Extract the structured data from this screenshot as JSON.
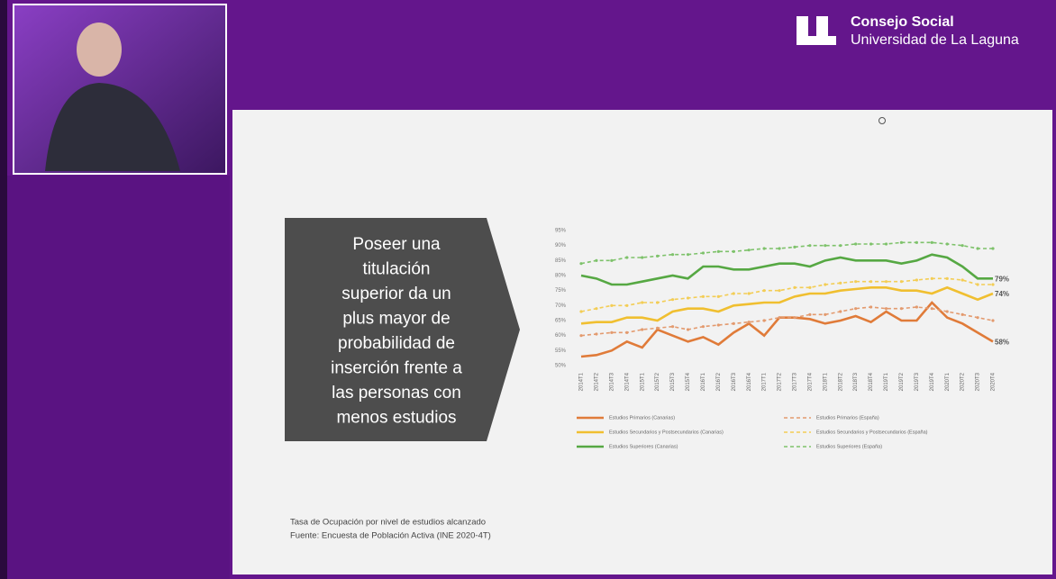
{
  "header": {
    "org": "Consejo Social",
    "university": "Universidad de La Laguna"
  },
  "slide": {
    "callout": [
      "Poseer una",
      "titulación",
      "superior da un",
      "plus mayor de",
      "probabilidad de",
      "inserción frente a",
      "las personas con",
      "menos estudios"
    ],
    "caption": [
      "Tasa de Ocupación por nivel de estudios alcanzado",
      "Fuente: Encuesta de Población Activa (INE 2020-4T)"
    ]
  },
  "chart_data": {
    "type": "line",
    "categories": [
      "2014T1",
      "2014T2",
      "2014T3",
      "2014T4",
      "2015T1",
      "2015T2",
      "2015T3",
      "2015T4",
      "2016T1",
      "2016T2",
      "2016T3",
      "2016T4",
      "2017T1",
      "2017T2",
      "2017T3",
      "2017T4",
      "2018T1",
      "2018T2",
      "2018T3",
      "2018T4",
      "2019T1",
      "2019T2",
      "2019T3",
      "2019T4",
      "2020T1",
      "2020T2",
      "2020T3",
      "2020T4"
    ],
    "ylim": [
      50,
      95
    ],
    "yticks": [
      {
        "value": 50,
        "label": "50%"
      },
      {
        "value": 55,
        "label": "55%"
      },
      {
        "value": 60,
        "label": "60%"
      },
      {
        "value": 65,
        "label": "65%"
      },
      {
        "value": 70,
        "label": "70%"
      },
      {
        "value": 75,
        "label": "75%"
      },
      {
        "value": 80,
        "label": "80%"
      },
      {
        "value": 85,
        "label": "85%"
      },
      {
        "value": 90,
        "label": "90%"
      },
      {
        "value": 95,
        "label": "95%"
      }
    ],
    "grid": false,
    "series": [
      {
        "name": "Estudios Primarios (Canarias)",
        "color": "#e07b39",
        "dashed": false,
        "values": [
          53,
          53.5,
          55,
          58,
          56,
          62,
          60,
          58,
          59.5,
          57,
          61,
          64,
          60,
          66,
          66,
          65.5,
          64,
          65,
          66.5,
          64.5,
          68,
          65,
          65,
          71,
          66,
          64,
          61,
          58
        ],
        "value_labels": [
          null,
          null,
          null,
          null,
          null,
          null,
          null,
          null,
          null,
          null,
          null,
          null,
          null,
          null,
          null,
          null,
          null,
          null,
          null,
          null,
          null,
          null,
          null,
          null,
          null,
          null,
          null,
          "58%"
        ]
      },
      {
        "name": "Estudios Primarios (España)",
        "color": "#e39a6e",
        "dashed": true,
        "values": [
          60,
          60.5,
          61,
          61,
          62,
          62.5,
          63,
          62,
          63,
          63.5,
          64,
          64.5,
          65,
          66,
          66,
          67,
          67,
          68,
          69,
          69.5,
          69,
          69,
          69.5,
          69,
          68,
          67,
          66,
          65
        ]
      },
      {
        "name": "Estudios Secundarios y Postsecundarios (Canarias)",
        "color": "#f0bf30",
        "dashed": false,
        "values": [
          64,
          64.5,
          64.5,
          66,
          66,
          65,
          68,
          69,
          69,
          68,
          70,
          70.5,
          71,
          71,
          73,
          74,
          74,
          75,
          75.5,
          76,
          76,
          75,
          75,
          74,
          76,
          74,
          72,
          74
        ],
        "value_labels": [
          null,
          null,
          null,
          null,
          null,
          null,
          null,
          null,
          null,
          null,
          null,
          null,
          null,
          null,
          null,
          null,
          null,
          null,
          null,
          null,
          null,
          null,
          null,
          null,
          null,
          null,
          null,
          "74%"
        ]
      },
      {
        "name": "Estudios Secundarios y Postsecundarios (España)",
        "color": "#f3cd55",
        "dashed": true,
        "values": [
          68,
          69,
          70,
          70,
          71,
          71,
          72,
          72.5,
          73,
          73,
          74,
          74,
          75,
          75,
          76,
          76,
          77,
          77.5,
          78,
          78,
          78,
          78,
          78.5,
          79,
          79,
          78.5,
          77,
          77
        ]
      },
      {
        "name": "Estudios Superiores (Canarias)",
        "color": "#56a843",
        "dashed": false,
        "values": [
          80,
          79,
          77,
          77,
          78,
          79,
          80,
          79,
          83,
          83,
          82,
          82,
          83,
          84,
          84,
          83,
          85,
          86,
          85,
          85,
          85,
          84,
          85,
          87,
          86,
          83,
          79,
          79
        ],
        "value_labels": [
          null,
          null,
          null,
          null,
          null,
          null,
          null,
          null,
          null,
          null,
          null,
          null,
          null,
          null,
          null,
          null,
          null,
          null,
          null,
          null,
          null,
          null,
          null,
          null,
          null,
          null,
          null,
          "79%"
        ]
      },
      {
        "name": "Estudios Superiores (España)",
        "color": "#7ec26b",
        "dashed": true,
        "values": [
          84,
          85,
          85,
          86,
          86,
          86.5,
          87,
          87,
          87.5,
          88,
          88,
          88.5,
          89,
          89,
          89.5,
          90,
          90,
          90,
          90.5,
          90.5,
          90.5,
          91,
          91,
          91,
          90.5,
          90,
          89,
          89
        ]
      }
    ]
  }
}
